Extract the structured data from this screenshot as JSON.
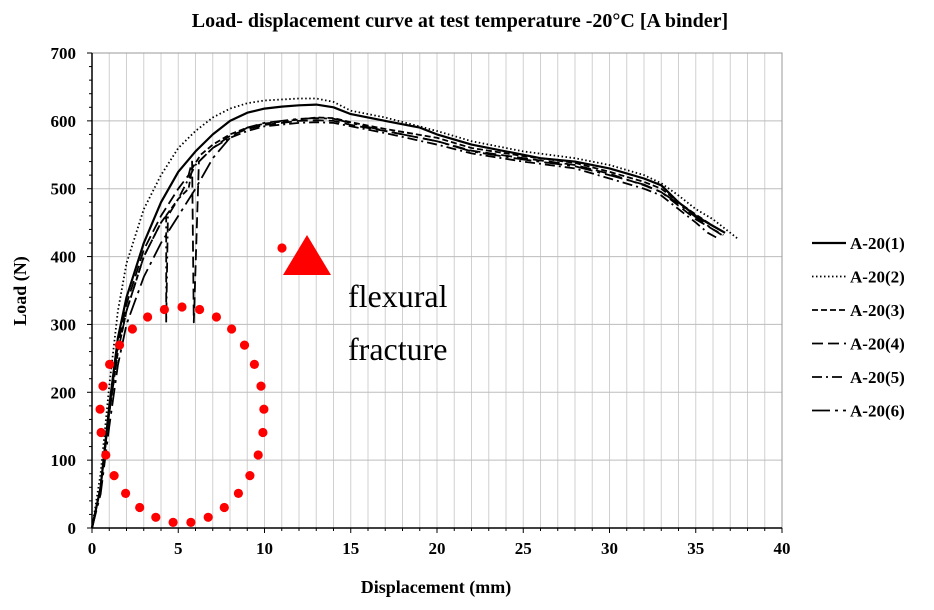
{
  "chart_data": {
    "type": "line",
    "title": "Load- displacement  curve at test temperature -20°C [A binder]",
    "xlabel": "Displacement (mm)",
    "ylabel": "Load (N)",
    "xlim": [
      0,
      40
    ],
    "ylim": [
      0,
      700
    ],
    "xticks": [
      "0",
      "5",
      "10",
      "15",
      "20",
      "25",
      "30",
      "35",
      "40"
    ],
    "yticks": [
      "0",
      "100",
      "200",
      "300",
      "400",
      "500",
      "600",
      "700"
    ],
    "grid": true,
    "legend_position": "right",
    "annotation": {
      "line1": "flexural",
      "line2": "fracture",
      "circle_color": "#ff0000",
      "arrow_color": "#ff0000"
    },
    "series": [
      {
        "name": "A-20(1)",
        "dash": "solid",
        "points": [
          [
            0,
            0
          ],
          [
            0.5,
            60
          ],
          [
            1,
            180
          ],
          [
            1.5,
            280
          ],
          [
            2,
            340
          ],
          [
            3,
            420
          ],
          [
            4,
            480
          ],
          [
            5,
            525
          ],
          [
            6,
            555
          ],
          [
            7,
            580
          ],
          [
            8,
            600
          ],
          [
            9,
            612
          ],
          [
            10,
            618
          ],
          [
            11,
            621
          ],
          [
            12,
            623
          ],
          [
            13,
            624
          ],
          [
            14,
            620
          ],
          [
            15,
            610
          ],
          [
            17,
            600
          ],
          [
            19,
            590
          ],
          [
            20,
            580
          ],
          [
            22,
            565
          ],
          [
            24,
            555
          ],
          [
            26,
            545
          ],
          [
            28,
            540
          ],
          [
            30,
            530
          ],
          [
            32,
            515
          ],
          [
            33,
            505
          ],
          [
            34,
            480
          ],
          [
            35,
            460
          ],
          [
            36,
            445
          ],
          [
            36.7,
            435
          ]
        ]
      },
      {
        "name": "A-20(2)",
        "dash": "dotted",
        "points": [
          [
            0,
            0
          ],
          [
            0.5,
            80
          ],
          [
            1,
            210
          ],
          [
            1.5,
            320
          ],
          [
            2,
            390
          ],
          [
            3,
            470
          ],
          [
            4,
            520
          ],
          [
            5,
            560
          ],
          [
            6,
            585
          ],
          [
            7,
            605
          ],
          [
            8,
            618
          ],
          [
            9,
            626
          ],
          [
            10,
            630
          ],
          [
            12,
            633
          ],
          [
            13,
            633
          ],
          [
            14,
            628
          ],
          [
            15,
            615
          ],
          [
            17,
            605
          ],
          [
            20,
            585
          ],
          [
            22,
            570
          ],
          [
            25,
            555
          ],
          [
            28,
            545
          ],
          [
            30,
            535
          ],
          [
            32,
            520
          ],
          [
            33,
            508
          ],
          [
            34,
            490
          ],
          [
            35,
            470
          ],
          [
            36,
            455
          ],
          [
            37,
            435
          ],
          [
            37.5,
            425
          ]
        ]
      },
      {
        "name": "A-20(3)",
        "dash": "short-dash",
        "points": [
          [
            0,
            0
          ],
          [
            0.5,
            60
          ],
          [
            1,
            170
          ],
          [
            1.5,
            260
          ],
          [
            2,
            320
          ],
          [
            3,
            400
          ],
          [
            4,
            450
          ],
          [
            5,
            485
          ],
          [
            5.6,
            500
          ],
          [
            5.8,
            530
          ],
          [
            6.3,
            550
          ],
          [
            7,
            565
          ],
          [
            8,
            580
          ],
          [
            9,
            590
          ],
          [
            10,
            596
          ],
          [
            12,
            602
          ],
          [
            13,
            605
          ],
          [
            14,
            604
          ],
          [
            15,
            598
          ],
          [
            17,
            588
          ],
          [
            20,
            575
          ],
          [
            22,
            560
          ],
          [
            25,
            548
          ],
          [
            28,
            538
          ],
          [
            30,
            525
          ],
          [
            32,
            510
          ],
          [
            33,
            500
          ],
          [
            34,
            480
          ],
          [
            35,
            462
          ],
          [
            36,
            445
          ],
          [
            36.5,
            438
          ]
        ]
      },
      {
        "name": "A-20(4)",
        "dash": "long-dash",
        "points": [
          [
            0,
            0
          ],
          [
            0.5,
            60
          ],
          [
            1,
            175
          ],
          [
            1.5,
            270
          ],
          [
            2,
            330
          ],
          [
            3,
            410
          ],
          [
            4,
            460
          ],
          [
            5,
            500
          ],
          [
            5.6,
            520
          ],
          [
            5.8,
            540
          ],
          [
            5.9,
            303
          ],
          [
            6.2,
            540
          ],
          [
            7,
            560
          ],
          [
            8,
            578
          ],
          [
            9,
            588
          ],
          [
            10,
            594
          ],
          [
            12,
            600
          ],
          [
            13,
            601
          ],
          [
            14,
            600
          ],
          [
            15,
            594
          ],
          [
            17,
            585
          ],
          [
            20,
            570
          ],
          [
            22,
            556
          ],
          [
            25,
            545
          ],
          [
            28,
            535
          ],
          [
            30,
            522
          ],
          [
            32,
            505
          ],
          [
            33,
            495
          ],
          [
            34,
            475
          ],
          [
            35,
            455
          ],
          [
            36,
            440
          ],
          [
            36.6,
            432
          ]
        ]
      },
      {
        "name": "A-20(5)",
        "dash": "dash-dot",
        "points": [
          [
            0,
            0
          ],
          [
            0.5,
            60
          ],
          [
            1,
            170
          ],
          [
            1.5,
            260
          ],
          [
            2,
            320
          ],
          [
            3,
            400
          ],
          [
            4,
            450
          ],
          [
            4.3,
            460
          ],
          [
            4.3,
            303
          ],
          [
            4.4,
            460
          ],
          [
            5,
            485
          ],
          [
            6,
            535
          ],
          [
            7,
            560
          ],
          [
            8,
            575
          ],
          [
            9,
            585
          ],
          [
            10,
            592
          ],
          [
            12,
            597
          ],
          [
            13,
            598
          ],
          [
            14,
            597
          ],
          [
            15,
            592
          ],
          [
            17,
            582
          ],
          [
            20,
            565
          ],
          [
            22,
            552
          ],
          [
            25,
            540
          ],
          [
            28,
            530
          ],
          [
            30,
            515
          ],
          [
            32,
            500
          ],
          [
            33,
            490
          ],
          [
            34,
            470
          ],
          [
            35,
            450
          ],
          [
            35.7,
            435
          ],
          [
            36.2,
            428
          ]
        ]
      },
      {
        "name": "A-20(6)",
        "dash": "long-dash-dot",
        "points": [
          [
            0,
            0
          ],
          [
            0.5,
            50
          ],
          [
            1,
            150
          ],
          [
            1.5,
            240
          ],
          [
            2,
            300
          ],
          [
            3,
            370
          ],
          [
            4,
            420
          ],
          [
            5,
            460
          ],
          [
            6,
            500
          ],
          [
            7,
            545
          ],
          [
            8,
            575
          ],
          [
            9,
            590
          ],
          [
            10,
            597
          ],
          [
            12,
            603
          ],
          [
            13,
            604
          ],
          [
            14,
            603
          ],
          [
            15,
            597
          ],
          [
            17,
            585
          ],
          [
            20,
            570
          ],
          [
            22,
            555
          ],
          [
            25,
            543
          ],
          [
            28,
            533
          ],
          [
            30,
            520
          ],
          [
            32,
            506
          ],
          [
            33,
            495
          ],
          [
            34,
            478
          ],
          [
            35,
            458
          ],
          [
            36,
            440
          ],
          [
            36.5,
            432
          ]
        ]
      }
    ]
  }
}
